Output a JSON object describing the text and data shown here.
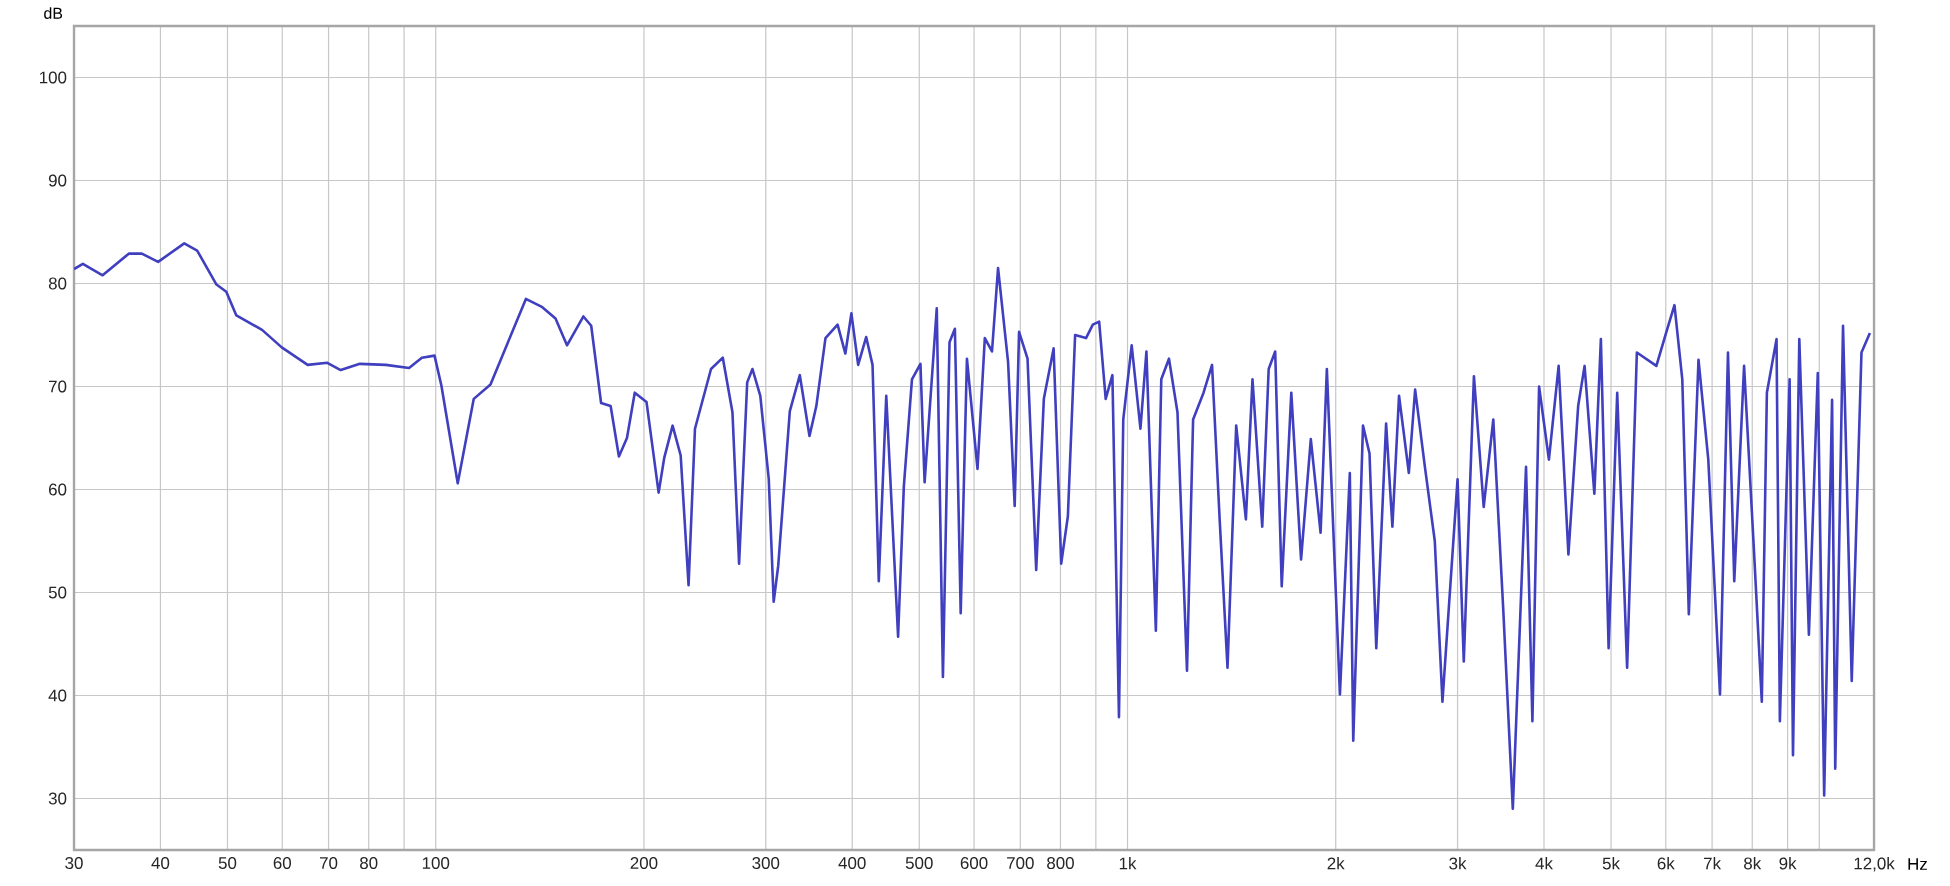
{
  "chart_data": {
    "type": "line",
    "xlabel": "Hz",
    "ylabel": "dB",
    "log": "x",
    "grid": true,
    "color": "#3f3fbf",
    "xlim": [
      30,
      12000
    ],
    "ylim": [
      25,
      105
    ],
    "xticks": [
      30,
      40,
      50,
      60,
      70,
      80,
      {
        "value": 90,
        "label": null
      },
      100,
      200,
      300,
      400,
      500,
      600,
      700,
      800,
      {
        "value": 900,
        "label": null
      },
      {
        "value": 1000,
        "label": "1k"
      },
      {
        "value": 2000,
        "label": "2k"
      },
      {
        "value": 3000,
        "label": "3k"
      },
      {
        "value": 4000,
        "label": "4k"
      },
      {
        "value": 5000,
        "label": "5k"
      },
      {
        "value": 6000,
        "label": "6k"
      },
      {
        "value": 7000,
        "label": "7k"
      },
      {
        "value": 8000,
        "label": "8k"
      },
      {
        "value": 9000,
        "label": "9k"
      },
      {
        "value": 10000,
        "label": null
      },
      {
        "value": 12000,
        "label": "12,0k"
      }
    ],
    "yticks": [
      30,
      40,
      50,
      60,
      70,
      80,
      90,
      100
    ],
    "x": [
      30,
      30.9,
      33.0,
      36.0,
      37.6,
      39.7,
      43.3,
      45.2,
      48.2,
      49.8,
      51.5,
      56.1,
      59.9,
      65.3,
      69.7,
      72.9,
      77.7,
      84.7,
      91.5,
      95.5,
      99.6,
      101.9,
      107.6,
      113.5,
      120,
      135,
      142.6,
      149,
      154.8,
      163.5,
      167.8,
      173.4,
      179,
      184,
      189,
      194,
      201.7,
      210,
      214,
      220,
      226,
      232,
      237,
      250,
      260,
      268.5,
      274.5,
      282,
      287,
      294.6,
      303,
      308,
      312.7,
      325,
      336,
      347,
      355,
      366,
      381,
      391,
      399,
      408,
      419,
      428,
      437,
      448,
      466,
      475,
      488,
      502,
      509,
      530,
      541,
      553,
      563,
      574,
      586,
      607,
      622,
      637,
      650,
      672,
      687,
      697,
      717,
      738,
      757,
      782,
      802,
      820,
      840,
      871,
      891,
      910,
      930,
      951,
      972,
      986,
      1014,
      1044,
      1065,
      1099,
      1119,
      1148,
      1181,
      1219,
      1244,
      1288,
      1325,
      1359,
      1395,
      1436,
      1483,
      1516,
      1566,
      1600,
      1635,
      1671,
      1725,
      1782,
      1841,
      1902,
      1942,
      2028,
      2096,
      2120,
      2190,
      2238,
      2289,
      2365,
      2415,
      2469,
      2551,
      2605,
      2691,
      2781,
      2853,
      2916,
      3000,
      3063,
      3168,
      3273,
      3379,
      3492,
      3606,
      3654,
      3768,
      3849,
      3936,
      4066,
      4200,
      4339,
      4482,
      4579,
      4730,
      4834,
      4960,
      5104,
      5275,
      5449,
      5629,
      5815,
      6006,
      6176,
      6339,
      6478,
      6690,
      6912,
      7186,
      7380,
      7537,
      7786,
      8041,
      8259,
      8400,
      8674,
      8771,
      9060,
      9162,
      9357,
      9661,
      9951,
      10164,
      10436,
      10546,
      10823,
      11141,
      11508,
      11835
    ],
    "values": [
      81.4,
      81.9,
      80.8,
      82.9,
      82.9,
      82.1,
      83.9,
      83.2,
      79.9,
      79.2,
      76.9,
      75.5,
      73.8,
      72.1,
      72.3,
      71.6,
      72.2,
      72.1,
      71.8,
      72.8,
      73.0,
      70.1,
      60.6,
      68.8,
      70.2,
      78.5,
      77.7,
      76.6,
      74.0,
      76.8,
      75.9,
      68.4,
      68.1,
      63.2,
      65.0,
      69.4,
      68.5,
      59.7,
      63.1,
      66.2,
      63.3,
      50.7,
      65.9,
      71.7,
      72.8,
      67.5,
      52.8,
      70.4,
      71.7,
      69.1,
      61.0,
      49.1,
      52.6,
      67.6,
      71.1,
      65.2,
      68.1,
      74.7,
      76.0,
      73.2,
      77.1,
      72.1,
      74.8,
      72.1,
      51.1,
      69.1,
      45.7,
      60.3,
      70.7,
      72.2,
      60.7,
      77.6,
      41.8,
      74.3,
      75.6,
      48.0,
      72.7,
      62.0,
      74.7,
      73.4,
      81.5,
      72.4,
      58.4,
      75.3,
      72.7,
      52.2,
      68.8,
      73.7,
      52.8,
      57.4,
      75.0,
      74.7,
      76.0,
      76.3,
      68.8,
      71.1,
      37.9,
      66.8,
      74.0,
      65.9,
      73.4,
      46.3,
      70.7,
      72.7,
      67.5,
      42.4,
      66.8,
      69.4,
      72.1,
      57.1,
      42.7,
      66.2,
      57.1,
      70.7,
      56.4,
      71.7,
      73.4,
      50.6,
      69.4,
      53.2,
      64.9,
      55.8,
      71.7,
      40.1,
      61.6,
      35.6,
      66.2,
      63.5,
      44.6,
      66.4,
      56.4,
      69.1,
      61.6,
      69.7,
      62.2,
      55.0,
      39.4,
      null,
      61.0,
      43.3,
      71.0,
      58.3,
      66.8,
      48.5,
      29.0,
      null,
      62.2,
      37.5,
      70.0,
      62.9,
      72.0,
      53.7,
      68.1,
      72.0,
      59.6,
      74.6,
      44.6,
      69.4,
      42.7,
      73.3,
      null,
      72.0,
      75.2,
      77.9,
      70.7,
      47.9,
      72.6,
      62.9,
      40.1,
      73.3,
      51.1,
      72.0,
      54.4,
      39.4,
      69.4,
      74.6,
      37.5,
      70.7,
      34.2,
      74.6,
      45.9,
      71.3,
      30.3,
      68.7,
      32.9,
      75.9,
      41.4,
      73.3,
      75.2
    ]
  }
}
